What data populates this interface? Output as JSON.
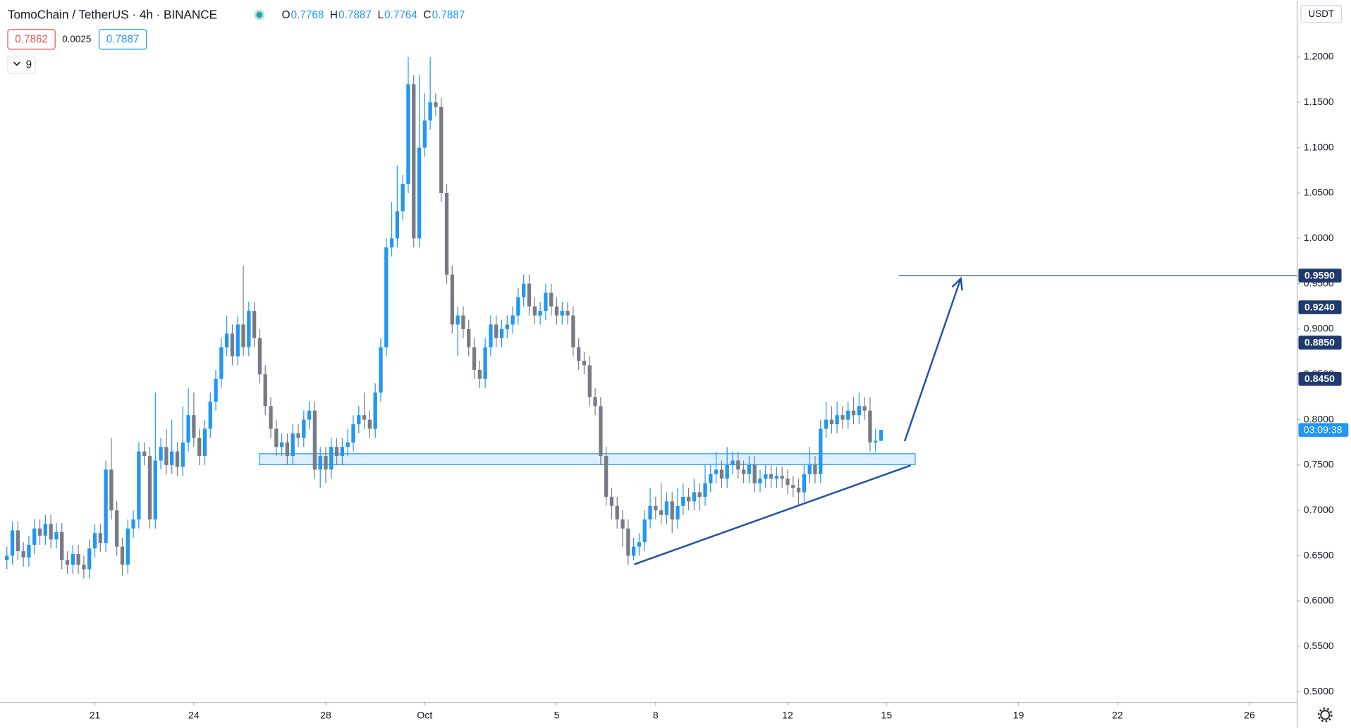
{
  "chart_data": {
    "type": "candlestick",
    "title": "TomoChain / TetherUS · 4h · BINANCE",
    "ohlc_labels": [
      "O",
      "H",
      "L",
      "C"
    ],
    "bid": 0.7862,
    "spread": 0.0025,
    "ask": 0.7887,
    "indicator_count": 9,
    "currency": "USDT",
    "countdown": "03:09:38",
    "up_color": "#2196f3",
    "down_color": "#787b86",
    "xlim": [
      -1.25,
      234.6
    ],
    "ylim": [
      0.4887,
      1.2627
    ],
    "xticks": [
      {
        "value": 16,
        "label": "21"
      },
      {
        "value": 34,
        "label": "24"
      },
      {
        "value": 58,
        "label": "28"
      },
      {
        "value": 76,
        "label": "Oct"
      },
      {
        "value": 100,
        "label": "5"
      },
      {
        "value": 118,
        "label": "8"
      },
      {
        "value": 142,
        "label": "12"
      },
      {
        "value": 160,
        "label": "15"
      },
      {
        "value": 184,
        "label": "19"
      },
      {
        "value": 202,
        "label": "22"
      },
      {
        "value": 226,
        "label": "26"
      }
    ],
    "yticks": [
      {
        "value": 0.5,
        "label": "0.5000"
      },
      {
        "value": 0.55,
        "label": "0.5500"
      },
      {
        "value": 0.6,
        "label": "0.6000"
      },
      {
        "value": 0.65,
        "label": "0.6500"
      },
      {
        "value": 0.7,
        "label": "0.7000"
      },
      {
        "value": 0.75,
        "label": "0.7500"
      },
      {
        "value": 0.8,
        "label": "0.8000"
      },
      {
        "value": 0.85,
        "label": "0.8500"
      },
      {
        "value": 0.9,
        "label": "0.9000"
      },
      {
        "value": 0.95,
        "label": "0.9500"
      },
      {
        "value": 1.0,
        "label": "1.0000"
      },
      {
        "value": 1.05,
        "label": "1.0500"
      },
      {
        "value": 1.1,
        "label": "1.1000"
      },
      {
        "value": 1.15,
        "label": "1.1500"
      },
      {
        "value": 1.2,
        "label": "1.2000"
      }
    ],
    "price_labels": [
      {
        "value": 0.959,
        "label": "0.9590"
      },
      {
        "value": 0.924,
        "label": "0.9240"
      },
      {
        "value": 0.885,
        "label": "0.8850"
      },
      {
        "value": 0.845,
        "label": "0.8450"
      }
    ],
    "zone": {
      "x_start": 45.9,
      "x_end": 165.2,
      "price_low": 0.7505,
      "price_high": 0.7625
    },
    "trendline": {
      "x": [
        114.1,
        164.4
      ],
      "y": [
        0.6405,
        0.7497
      ]
    },
    "target_line_start": 162.2,
    "arrow": {
      "x": [
        163.3,
        173.5
      ],
      "y": [
        0.7764,
        0.9558
      ]
    },
    "candles": [
      [
        0.645,
        0.66,
        0.635,
        0.65
      ],
      [
        0.65,
        0.688,
        0.64,
        0.678
      ],
      [
        0.678,
        0.688,
        0.645,
        0.655
      ],
      [
        0.655,
        0.665,
        0.638,
        0.648
      ],
      [
        0.648,
        0.672,
        0.638,
        0.662
      ],
      [
        0.662,
        0.69,
        0.652,
        0.68
      ],
      [
        0.68,
        0.69,
        0.662,
        0.672
      ],
      [
        0.672,
        0.695,
        0.662,
        0.685
      ],
      [
        0.685,
        0.695,
        0.658,
        0.668
      ],
      [
        0.668,
        0.686,
        0.658,
        0.676
      ],
      [
        0.676,
        0.686,
        0.635,
        0.645
      ],
      [
        0.645,
        0.655,
        0.63,
        0.64
      ],
      [
        0.64,
        0.662,
        0.63,
        0.652
      ],
      [
        0.652,
        0.662,
        0.63,
        0.64
      ],
      [
        0.64,
        0.65,
        0.625,
        0.635
      ],
      [
        0.635,
        0.668,
        0.625,
        0.658
      ],
      [
        0.658,
        0.685,
        0.648,
        0.675
      ],
      [
        0.675,
        0.685,
        0.654,
        0.664
      ],
      [
        0.664,
        0.755,
        0.654,
        0.745
      ],
      [
        0.745,
        0.78,
        0.69,
        0.7
      ],
      [
        0.7,
        0.71,
        0.65,
        0.66
      ],
      [
        0.66,
        0.67,
        0.628,
        0.64
      ],
      [
        0.64,
        0.69,
        0.63,
        0.68
      ],
      [
        0.68,
        0.7,
        0.67,
        0.69
      ],
      [
        0.69,
        0.775,
        0.68,
        0.765
      ],
      [
        0.765,
        0.775,
        0.75,
        0.76
      ],
      [
        0.76,
        0.77,
        0.68,
        0.69
      ],
      [
        0.69,
        0.83,
        0.68,
        0.755
      ],
      [
        0.755,
        0.78,
        0.745,
        0.77
      ],
      [
        0.77,
        0.79,
        0.74,
        0.75
      ],
      [
        0.75,
        0.8,
        0.74,
        0.765
      ],
      [
        0.765,
        0.775,
        0.738,
        0.748
      ],
      [
        0.748,
        0.815,
        0.738,
        0.775
      ],
      [
        0.775,
        0.835,
        0.765,
        0.805
      ],
      [
        0.805,
        0.83,
        0.77,
        0.78
      ],
      [
        0.78,
        0.79,
        0.75,
        0.76
      ],
      [
        0.76,
        0.8,
        0.75,
        0.79
      ],
      [
        0.79,
        0.83,
        0.78,
        0.82
      ],
      [
        0.82,
        0.855,
        0.81,
        0.845
      ],
      [
        0.845,
        0.89,
        0.835,
        0.88
      ],
      [
        0.88,
        0.915,
        0.87,
        0.895
      ],
      [
        0.895,
        0.905,
        0.86,
        0.87
      ],
      [
        0.87,
        0.915,
        0.86,
        0.905
      ],
      [
        0.905,
        0.97,
        0.87,
        0.88
      ],
      [
        0.88,
        0.93,
        0.87,
        0.92
      ],
      [
        0.92,
        0.93,
        0.88,
        0.89
      ],
      [
        0.89,
        0.9,
        0.84,
        0.85
      ],
      [
        0.85,
        0.86,
        0.805,
        0.815
      ],
      [
        0.815,
        0.825,
        0.78,
        0.79
      ],
      [
        0.79,
        0.8,
        0.76,
        0.77
      ],
      [
        0.77,
        0.785,
        0.76,
        0.775
      ],
      [
        0.775,
        0.785,
        0.75,
        0.76
      ],
      [
        0.76,
        0.795,
        0.75,
        0.785
      ],
      [
        0.785,
        0.795,
        0.77,
        0.78
      ],
      [
        0.78,
        0.81,
        0.77,
        0.8
      ],
      [
        0.8,
        0.82,
        0.79,
        0.81
      ],
      [
        0.81,
        0.82,
        0.735,
        0.745
      ],
      [
        0.745,
        0.77,
        0.725,
        0.76
      ],
      [
        0.76,
        0.77,
        0.73,
        0.745
      ],
      [
        0.745,
        0.78,
        0.735,
        0.77
      ],
      [
        0.77,
        0.78,
        0.75,
        0.76
      ],
      [
        0.76,
        0.78,
        0.75,
        0.77
      ],
      [
        0.77,
        0.79,
        0.76,
        0.775
      ],
      [
        0.775,
        0.805,
        0.765,
        0.795
      ],
      [
        0.795,
        0.815,
        0.785,
        0.805
      ],
      [
        0.805,
        0.83,
        0.79,
        0.8
      ],
      [
        0.8,
        0.81,
        0.78,
        0.79
      ],
      [
        0.79,
        0.84,
        0.78,
        0.83
      ],
      [
        0.83,
        0.89,
        0.82,
        0.88
      ],
      [
        0.88,
        1.0,
        0.87,
        0.99
      ],
      [
        0.99,
        1.04,
        0.98,
        1.0
      ],
      [
        1.0,
        1.08,
        0.99,
        1.03
      ],
      [
        1.03,
        1.07,
        1.02,
        1.06
      ],
      [
        1.06,
        1.2,
        1.05,
        1.17
      ],
      [
        1.17,
        1.18,
        0.99,
        1.0
      ],
      [
        1.0,
        1.18,
        0.99,
        1.1
      ],
      [
        1.1,
        1.16,
        1.09,
        1.13
      ],
      [
        1.13,
        1.2,
        1.12,
        1.15
      ],
      [
        1.15,
        1.16,
        1.135,
        1.145
      ],
      [
        1.145,
        1.155,
        1.04,
        1.05
      ],
      [
        1.05,
        1.06,
        0.95,
        0.96
      ],
      [
        0.96,
        0.97,
        0.895,
        0.905
      ],
      [
        0.905,
        0.925,
        0.87,
        0.915
      ],
      [
        0.915,
        0.925,
        0.89,
        0.9
      ],
      [
        0.9,
        0.91,
        0.87,
        0.88
      ],
      [
        0.88,
        0.89,
        0.845,
        0.855
      ],
      [
        0.855,
        0.865,
        0.835,
        0.845
      ],
      [
        0.845,
        0.89,
        0.835,
        0.88
      ],
      [
        0.88,
        0.915,
        0.87,
        0.905
      ],
      [
        0.905,
        0.915,
        0.88,
        0.89
      ],
      [
        0.89,
        0.91,
        0.88,
        0.9
      ],
      [
        0.9,
        0.915,
        0.89,
        0.905
      ],
      [
        0.905,
        0.925,
        0.895,
        0.915
      ],
      [
        0.915,
        0.945,
        0.905,
        0.935
      ],
      [
        0.935,
        0.96,
        0.925,
        0.95
      ],
      [
        0.95,
        0.96,
        0.915,
        0.925
      ],
      [
        0.925,
        0.935,
        0.905,
        0.915
      ],
      [
        0.915,
        0.93,
        0.905,
        0.92
      ],
      [
        0.92,
        0.95,
        0.91,
        0.94
      ],
      [
        0.94,
        0.95,
        0.915,
        0.925
      ],
      [
        0.925,
        0.935,
        0.905,
        0.915
      ],
      [
        0.915,
        0.93,
        0.905,
        0.92
      ],
      [
        0.92,
        0.93,
        0.905,
        0.915
      ],
      [
        0.915,
        0.925,
        0.87,
        0.88
      ],
      [
        0.88,
        0.89,
        0.855,
        0.865
      ],
      [
        0.865,
        0.875,
        0.85,
        0.86
      ],
      [
        0.86,
        0.87,
        0.815,
        0.825
      ],
      [
        0.825,
        0.835,
        0.805,
        0.815
      ],
      [
        0.815,
        0.825,
        0.75,
        0.76
      ],
      [
        0.76,
        0.77,
        0.705,
        0.715
      ],
      [
        0.715,
        0.725,
        0.69,
        0.705
      ],
      [
        0.705,
        0.715,
        0.68,
        0.69
      ],
      [
        0.69,
        0.7,
        0.66,
        0.68
      ],
      [
        0.68,
        0.69,
        0.64,
        0.65
      ],
      [
        0.65,
        0.67,
        0.645,
        0.66
      ],
      [
        0.66,
        0.675,
        0.65,
        0.665
      ],
      [
        0.665,
        0.7,
        0.655,
        0.69
      ],
      [
        0.69,
        0.725,
        0.68,
        0.705
      ],
      [
        0.705,
        0.715,
        0.69,
        0.7
      ],
      [
        0.7,
        0.73,
        0.685,
        0.695
      ],
      [
        0.695,
        0.72,
        0.685,
        0.71
      ],
      [
        0.71,
        0.72,
        0.675,
        0.69
      ],
      [
        0.69,
        0.725,
        0.68,
        0.705
      ],
      [
        0.705,
        0.73,
        0.695,
        0.715
      ],
      [
        0.715,
        0.725,
        0.7,
        0.71
      ],
      [
        0.71,
        0.735,
        0.7,
        0.72
      ],
      [
        0.72,
        0.73,
        0.7,
        0.715
      ],
      [
        0.715,
        0.75,
        0.705,
        0.73
      ],
      [
        0.73,
        0.75,
        0.72,
        0.74
      ],
      [
        0.74,
        0.765,
        0.73,
        0.745
      ],
      [
        0.745,
        0.755,
        0.725,
        0.735
      ],
      [
        0.735,
        0.77,
        0.725,
        0.75
      ],
      [
        0.75,
        0.765,
        0.74,
        0.755
      ],
      [
        0.755,
        0.765,
        0.735,
        0.745
      ],
      [
        0.745,
        0.755,
        0.73,
        0.74
      ],
      [
        0.74,
        0.76,
        0.73,
        0.75
      ],
      [
        0.75,
        0.76,
        0.72,
        0.73
      ],
      [
        0.73,
        0.745,
        0.72,
        0.735
      ],
      [
        0.735,
        0.75,
        0.725,
        0.74
      ],
      [
        0.74,
        0.75,
        0.725,
        0.735
      ],
      [
        0.735,
        0.748,
        0.725,
        0.738
      ],
      [
        0.738,
        0.748,
        0.725,
        0.735
      ],
      [
        0.735,
        0.745,
        0.718,
        0.728
      ],
      [
        0.728,
        0.738,
        0.715,
        0.725
      ],
      [
        0.725,
        0.735,
        0.705,
        0.72
      ],
      [
        0.72,
        0.75,
        0.71,
        0.74
      ],
      [
        0.74,
        0.77,
        0.73,
        0.75
      ],
      [
        0.75,
        0.76,
        0.73,
        0.74
      ],
      [
        0.74,
        0.8,
        0.73,
        0.79
      ],
      [
        0.79,
        0.82,
        0.78,
        0.8
      ],
      [
        0.8,
        0.815,
        0.785,
        0.795
      ],
      [
        0.795,
        0.82,
        0.785,
        0.805
      ],
      [
        0.805,
        0.815,
        0.79,
        0.8
      ],
      [
        0.8,
        0.82,
        0.79,
        0.81
      ],
      [
        0.81,
        0.825,
        0.795,
        0.805
      ],
      [
        0.805,
        0.83,
        0.795,
        0.815
      ],
      [
        0.815,
        0.825,
        0.8,
        0.81
      ],
      [
        0.81,
        0.825,
        0.765,
        0.775
      ],
      [
        0.775,
        0.79,
        0.765,
        0.7768
      ],
      [
        0.7768,
        0.7887,
        0.7764,
        0.7887
      ]
    ]
  }
}
